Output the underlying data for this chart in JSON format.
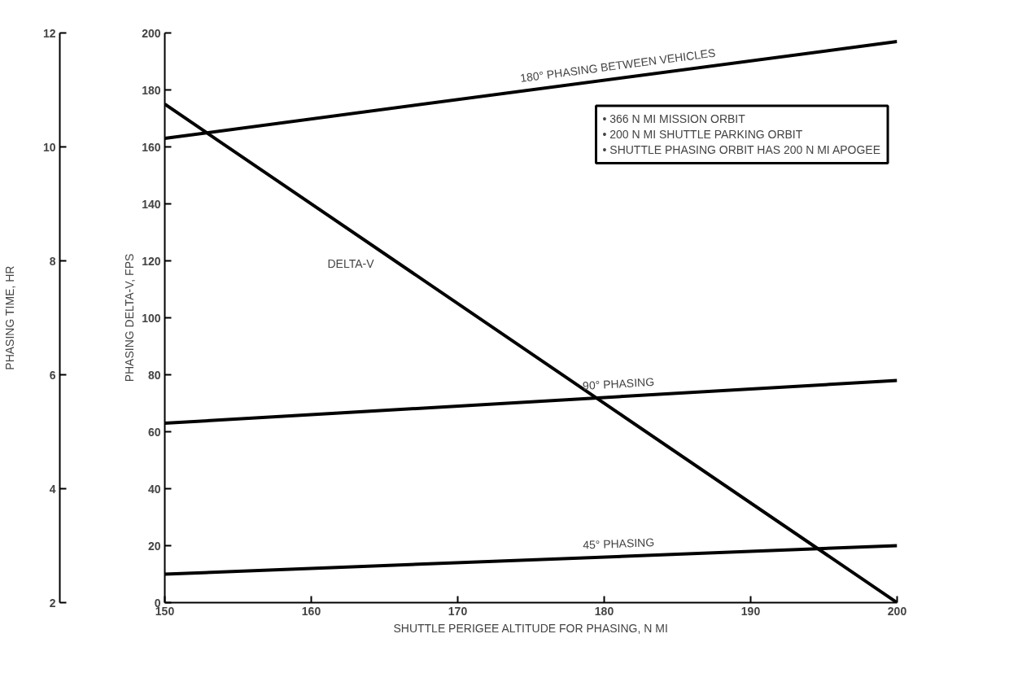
{
  "chart_data": {
    "type": "line",
    "xlabel": "SHUTTLE PERIGEE ALTITUDE FOR PHASING, N MI",
    "ylabel": "PHASING TIME, HR",
    "y2label": "PHASING DELTA-V, FPS",
    "x": [
      150,
      200
    ],
    "xlim": [
      150,
      200
    ],
    "xticks": [
      150,
      160,
      170,
      180,
      190,
      200
    ],
    "ylim": [
      2,
      12
    ],
    "yticks": [
      2,
      4,
      6,
      8,
      10,
      12
    ],
    "y2lim": [
      0,
      200
    ],
    "y2ticks": [
      0,
      20,
      40,
      60,
      80,
      100,
      120,
      140,
      160,
      180,
      200
    ],
    "series": [
      {
        "name": "180° PHASING BETWEEN VEHICLES",
        "color": "#000000",
        "values": [
          10.15,
          11.85
        ]
      },
      {
        "name": "DELTA-V",
        "color": "#000000",
        "axis": "y2",
        "values": [
          175,
          0
        ]
      },
      {
        "name": "90° PHASING",
        "color": "#000000",
        "values": [
          5.15,
          5.9
        ]
      },
      {
        "name": "45° PHASING",
        "color": "#000000",
        "values": [
          2.5,
          3.0
        ]
      }
    ],
    "annotations": [
      "• 366 N MI MISSION ORBIT",
      "• 200 N MI SHUTTLE PARKING ORBIT",
      "• SHUTTLE PHASING ORBIT HAS 200 N MI APOGEE"
    ],
    "grid": false,
    "line_style": "solid",
    "marker": "none"
  }
}
